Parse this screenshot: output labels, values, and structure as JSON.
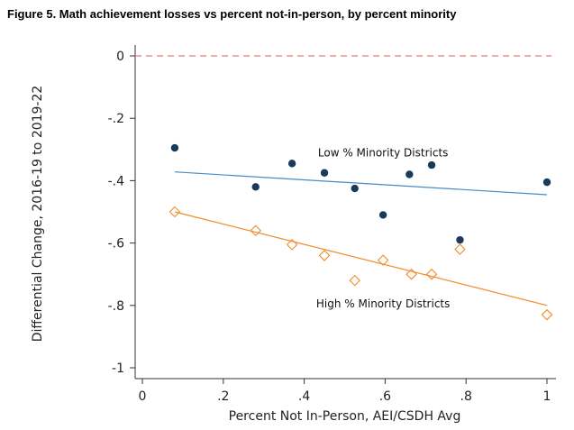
{
  "figure_title": "Figure 5. Math achievement losses vs percent not-in-person, by percent minority",
  "chart_data": {
    "type": "scatter",
    "title": "Figure 5. Math achievement losses vs percent not-in-person, by percent minority",
    "xlabel": "Percent Not In-Person, AEI/CSDH Avg",
    "ylabel": "Differential Change, 2016-19 to 2019-22",
    "xlim": [
      0,
      1
    ],
    "ylim": [
      -1,
      0
    ],
    "x_ticks": [
      0,
      0.2,
      0.4,
      0.6,
      0.8,
      1
    ],
    "x_tick_labels": [
      "0",
      ".2",
      ".4",
      ".6",
      ".8",
      "1"
    ],
    "y_ticks": [
      0,
      -0.2,
      -0.4,
      -0.6,
      -0.8,
      -1
    ],
    "y_tick_labels": [
      "0",
      "-.2",
      "-.4",
      "-.6",
      "-.8",
      "-1"
    ],
    "grid": false,
    "reference_line": {
      "y": 0,
      "style": "dashed",
      "color": "#e07b7b"
    },
    "series": [
      {
        "marker": "filled-circle",
        "color": "#1a3a5c",
        "fit_color": "#4a8bbf",
        "x": [
          0.08,
          0.28,
          0.37,
          0.45,
          0.525,
          0.595,
          0.66,
          0.715,
          0.785,
          1.0
        ],
        "y": [
          -0.295,
          -0.42,
          -0.345,
          -0.375,
          -0.425,
          -0.51,
          -0.38,
          -0.35,
          -0.59,
          -0.405
        ],
        "fit": {
          "x": [
            0.08,
            1.0
          ],
          "y": [
            -0.372,
            -0.445
          ]
        }
      },
      {
        "marker": "hollow-diamond",
        "color": "#f28c28",
        "fit_color": "#f28c28",
        "x": [
          0.08,
          0.28,
          0.37,
          0.45,
          0.525,
          0.595,
          0.665,
          0.715,
          0.785,
          1.0
        ],
        "y": [
          -0.5,
          -0.56,
          -0.605,
          -0.64,
          -0.72,
          -0.655,
          -0.7,
          -0.7,
          -0.62,
          -0.83
        ],
        "fit": {
          "x": [
            0.08,
            1.0
          ],
          "y": [
            -0.5,
            -0.8
          ]
        }
      }
    ],
    "annotations": [
      {
        "text": "Low % Minority Districts",
        "x": 0.595,
        "y": -0.31
      },
      {
        "text": "High % Minority Districts",
        "x": 0.595,
        "y": -0.795
      }
    ]
  }
}
